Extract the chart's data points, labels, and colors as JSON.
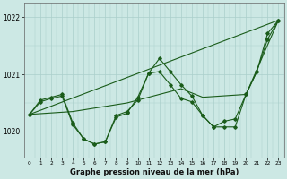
{
  "hours": [
    0,
    1,
    2,
    3,
    4,
    5,
    6,
    7,
    8,
    9,
    10,
    11,
    12,
    13,
    14,
    15,
    16,
    17,
    18,
    19,
    20,
    21,
    22,
    23
  ],
  "line_zigzag": [
    1020.3,
    1020.55,
    1020.6,
    1020.65,
    1020.15,
    1019.87,
    1019.78,
    1019.82,
    1020.28,
    1020.35,
    1020.55,
    1021.02,
    1021.28,
    1021.05,
    1020.82,
    1020.62,
    1020.28,
    1020.08,
    1020.18,
    1020.22,
    1020.65,
    1021.05,
    1021.72,
    1021.95
  ],
  "line_zigzag2": [
    1020.3,
    1020.52,
    1020.58,
    1020.62,
    1020.12,
    1019.87,
    1019.78,
    1019.82,
    1020.25,
    1020.32,
    1020.6,
    1021.02,
    1021.05,
    1020.82,
    1020.58,
    1020.52,
    1020.28,
    1020.08,
    1020.08,
    1020.08,
    1020.65,
    1021.05,
    1021.62,
    1021.95
  ],
  "line_trend1_x": [
    0,
    23
  ],
  "line_trend1_y": [
    1020.3,
    1021.95
  ],
  "line_trend2_x": [
    0,
    4,
    9,
    14,
    16,
    20,
    23
  ],
  "line_trend2_y": [
    1020.3,
    1020.35,
    1020.5,
    1020.75,
    1020.6,
    1020.65,
    1021.95
  ],
  "line_color": "#1a5c1a",
  "bg_color": "#cce8e4",
  "grid_color": "#aacfcb",
  "xlabel": "Graphe pression niveau de la mer (hPa)",
  "ylim": [
    1019.55,
    1022.25
  ],
  "yticks": [
    1020,
    1021,
    1022
  ],
  "xticks": [
    0,
    1,
    2,
    3,
    4,
    5,
    6,
    7,
    8,
    9,
    10,
    11,
    12,
    13,
    14,
    15,
    16,
    17,
    18,
    19,
    20,
    21,
    22,
    23
  ]
}
